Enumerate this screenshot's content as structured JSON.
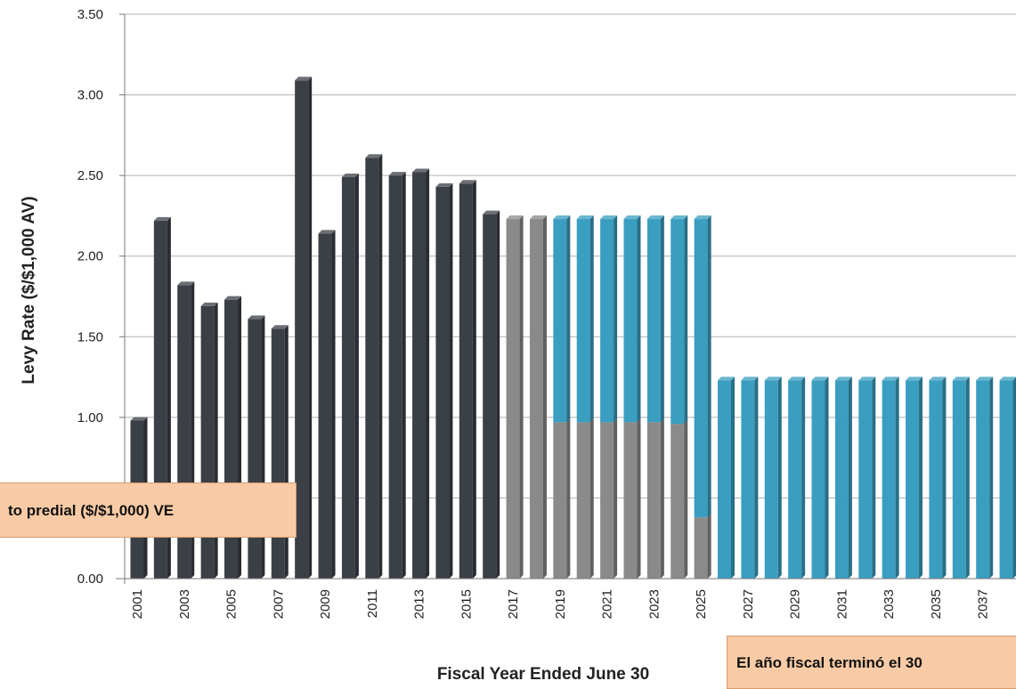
{
  "chart_data": {
    "type": "bar",
    "xlabel": "Fiscal Year Ended June 30",
    "ylabel": "Levy Rate ($/$1,000 AV)",
    "ylim": [
      0,
      3.5
    ],
    "yticks": [
      "0.00",
      "0.50",
      "1.00",
      "1.50",
      "2.00",
      "2.50",
      "3.00",
      "3.50"
    ],
    "grid": true,
    "categories": [
      "2001",
      "2002",
      "2003",
      "2004",
      "2005",
      "2006",
      "2007",
      "2008",
      "2009",
      "2010",
      "2011",
      "2012",
      "2013",
      "2014",
      "2015",
      "2016",
      "2017",
      "2018",
      "2019",
      "2020",
      "2021",
      "2022",
      "2023",
      "2024",
      "2025",
      "2026",
      "2027",
      "2028",
      "2029",
      "2030",
      "2031",
      "2032",
      "2033",
      "2034",
      "2035",
      "2036",
      "2037",
      "2038"
    ],
    "tick_labels": [
      "2001",
      "2003",
      "2005",
      "2007",
      "2009",
      "2011",
      "2013",
      "2015",
      "2017",
      "2019",
      "2021",
      "2023",
      "2025",
      "2027",
      "2029",
      "2031",
      "2033",
      "2035",
      "2037"
    ],
    "series": [
      {
        "color": "#3b3f46",
        "values": [
          0.98,
          2.22,
          1.82,
          1.69,
          1.73,
          1.61,
          1.55,
          3.09,
          2.14,
          2.49,
          2.61,
          2.5,
          2.52,
          2.43,
          2.45,
          2.26,
          0,
          0,
          0,
          0,
          0,
          0,
          0,
          0,
          0,
          0,
          0,
          0,
          0,
          0,
          0,
          0,
          0,
          0,
          0,
          0,
          0,
          0
        ]
      },
      {
        "color": "#8a8a8a",
        "values": [
          0,
          0,
          0,
          0,
          0,
          0,
          0,
          0,
          0,
          0,
          0,
          0,
          0,
          0,
          0,
          0,
          2.23,
          2.23,
          0.97,
          0.97,
          0.97,
          0.97,
          0.97,
          0.96,
          0.38,
          0,
          0,
          0,
          0,
          0,
          0,
          0,
          0,
          0,
          0,
          0,
          0,
          0
        ]
      },
      {
        "color": "#3a9ec0",
        "values": [
          0,
          0,
          0,
          0,
          0,
          0,
          0,
          0,
          0,
          0,
          0,
          0,
          0,
          0,
          0,
          0,
          0,
          0,
          1.26,
          1.26,
          1.26,
          1.26,
          1.26,
          1.27,
          1.85,
          1.23,
          1.23,
          1.23,
          1.23,
          1.23,
          1.23,
          1.23,
          1.23,
          1.23,
          1.23,
          1.23,
          1.23,
          1.23
        ]
      }
    ]
  },
  "overlays": {
    "left_label": "to predial ($/$1,000) VE",
    "bottom_label": "El año fiscal terminó el 30"
  }
}
